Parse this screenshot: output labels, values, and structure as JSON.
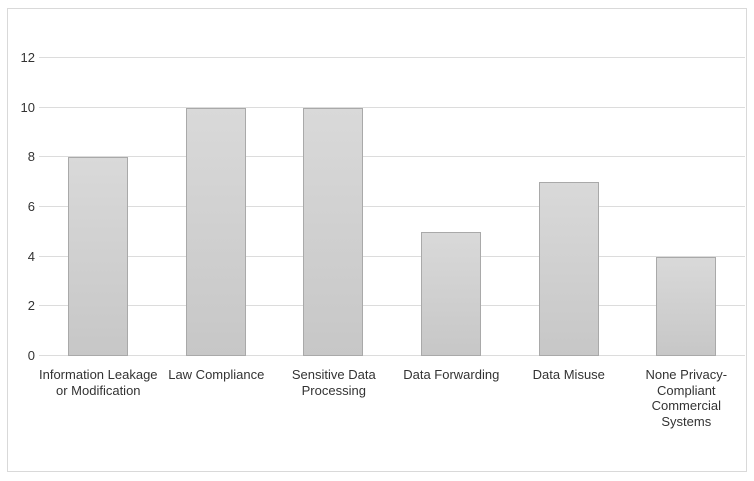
{
  "chart_data": {
    "type": "bar",
    "title": "",
    "xlabel": "",
    "ylabel": "",
    "categories": [
      "Information Leakage or Modification",
      "Law Compliance",
      "Sensitive Data Processing",
      "Data Forwarding",
      "Data Misuse",
      "None Privacy-Compliant Commercial Systems"
    ],
    "category_lines": [
      [
        "Information Leakage",
        "or Modification"
      ],
      [
        "Law Compliance"
      ],
      [
        "Sensitive Data",
        "Processing"
      ],
      [
        "Data Forwarding"
      ],
      [
        "Data Misuse"
      ],
      [
        "None Privacy-",
        "Compliant",
        "Commercial",
        "Systems"
      ]
    ],
    "values": [
      8,
      10,
      10,
      5,
      7,
      4
    ],
    "ylim": [
      0,
      12
    ],
    "yticks": [
      0,
      2,
      4,
      6,
      8,
      10,
      12
    ],
    "grid": true,
    "legend_position": "none",
    "bar_color": "#cdcdcd"
  },
  "colors": {
    "background": "#ffffff",
    "frame_border": "#d9d9d9",
    "gridline": "#dcdcdc",
    "bar_fill_top": "#d9d9d9",
    "bar_fill_bottom": "#c7c7c7",
    "bar_border": "#a9a9a9",
    "text": "#333333"
  }
}
